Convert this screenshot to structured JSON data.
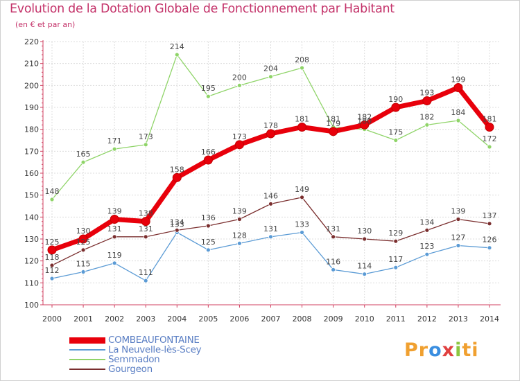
{
  "chart_data": {
    "type": "line",
    "title": "Evolution de la Dotation Globale de Fonctionnement par Habitant",
    "subtitle": "(en € et par an)",
    "x": [
      "2000",
      "2001",
      "2002",
      "2003",
      "2004",
      "2005",
      "2006",
      "2007",
      "2008",
      "2009",
      "2010",
      "2011",
      "2012",
      "2013",
      "2014"
    ],
    "yticks": [
      "100",
      "110",
      "120",
      "130",
      "140",
      "150",
      "160",
      "170",
      "180",
      "190",
      "200",
      "210",
      "220"
    ],
    "ylim": [
      100,
      220
    ],
    "series": [
      {
        "name": "COMBEAUFONTAINE",
        "color": "#e8000b",
        "values": [
          125,
          130,
          139,
          138,
          158,
          166,
          173,
          178,
          181,
          179,
          182,
          190,
          193,
          199,
          181
        ],
        "labels": [
          "125",
          "130",
          "139",
          "138",
          "158",
          "166",
          "173",
          "178",
          "181",
          "179",
          "182",
          "190",
          "193",
          "199",
          "181"
        ]
      },
      {
        "name": "La Neuvelle-lès-Scey",
        "color": "#5b9bd5",
        "values": [
          112,
          115,
          119,
          111,
          133,
          125,
          128,
          131,
          133,
          116,
          114,
          117,
          123,
          127,
          126
        ],
        "labels": [
          "112",
          "115",
          "119",
          "111",
          "133",
          "125",
          "128",
          "131",
          "133",
          "116",
          "114",
          "117",
          "123",
          "127",
          "126"
        ]
      },
      {
        "name": "Semmadon",
        "color": "#8fd468",
        "values": [
          148,
          165,
          171,
          173,
          214,
          195,
          200,
          204,
          208,
          181,
          180,
          175,
          182,
          184,
          172
        ],
        "labels": [
          "148",
          "165",
          "171",
          "173",
          "214",
          "195",
          "200",
          "204",
          "208",
          "181",
          "180",
          "175",
          "182",
          "184",
          "172"
        ]
      },
      {
        "name": "Gourgeon",
        "color": "#7a2e2e",
        "values": [
          118,
          125,
          131,
          131,
          134,
          136,
          139,
          146,
          149,
          131,
          130,
          129,
          134,
          139,
          137
        ],
        "labels": [
          "118",
          "125",
          "131",
          "131",
          "134",
          "136",
          "139",
          "146",
          "149",
          "131",
          "130",
          "129",
          "134",
          "139",
          "137"
        ]
      }
    ]
  },
  "logo": {
    "parts": [
      "Pr",
      "o",
      "x",
      "i",
      "ti"
    ],
    "colors": [
      "#f0a030",
      "#3a8ee0",
      "#e04040",
      "#8cc63f",
      "#f0a030"
    ]
  }
}
